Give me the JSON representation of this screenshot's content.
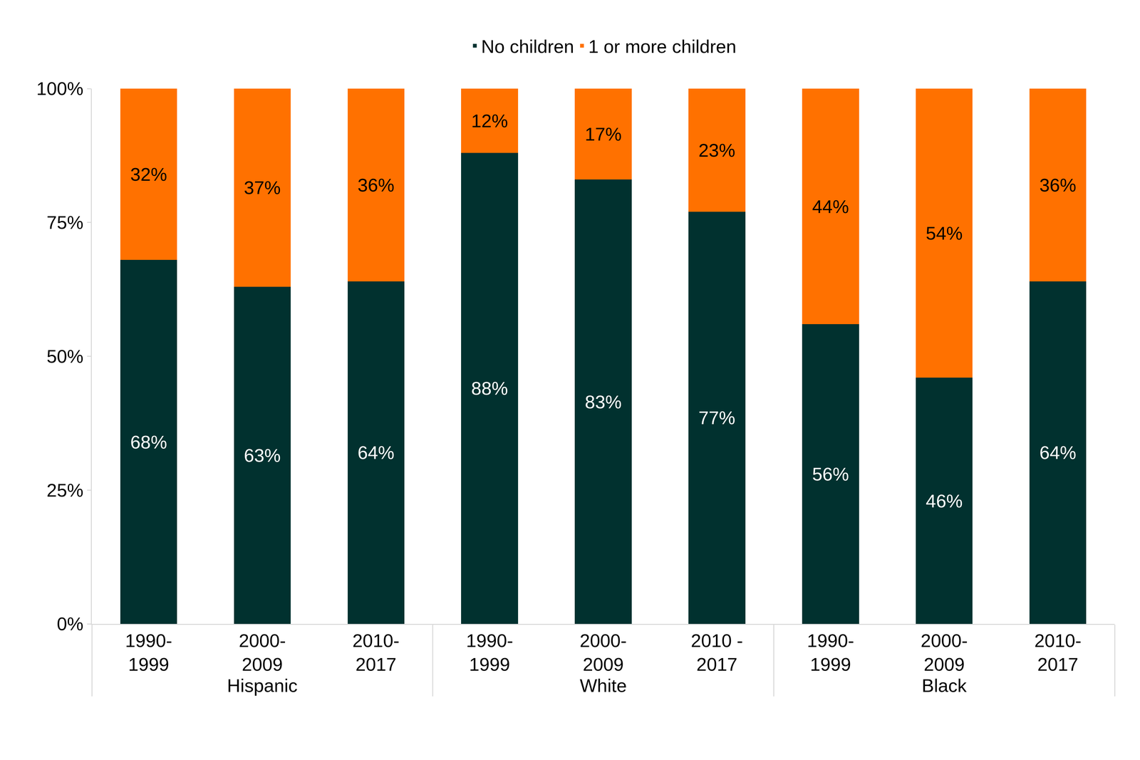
{
  "chart_data": {
    "type": "bar",
    "stacked": true,
    "data_labels": true,
    "legend": "top",
    "grid": false,
    "categories": [
      [
        "Hispanic",
        "1990-\n1999"
      ],
      [
        "Hispanic",
        "2000-\n2009"
      ],
      [
        "Hispanic",
        "2010-\n2017"
      ],
      [
        "White",
        "1990-\n1999"
      ],
      [
        "White",
        "2000-\n2009"
      ],
      [
        "White",
        "2010 -\n2017"
      ],
      [
        "Black",
        "1990-\n1999"
      ],
      [
        "Black",
        "2000-\n2009"
      ],
      [
        "Black",
        "2010-\n2017"
      ]
    ],
    "series": [
      {
        "name": "No children",
        "color": "#01312f",
        "values": [
          68,
          63,
          64,
          88,
          83,
          77,
          56,
          46,
          64
        ],
        "value_labels": [
          "68%",
          "63%",
          "64%",
          "88%",
          "83%",
          "77%",
          "56%",
          "46%",
          "64%"
        ]
      },
      {
        "name": "1 or more children",
        "color": "#ff7100",
        "values": [
          32,
          37,
          36,
          12,
          17,
          23,
          44,
          54,
          36
        ],
        "value_labels": [
          "32%",
          "37%",
          "36%",
          "12%",
          "17%",
          "23%",
          "44%",
          "54%",
          "36%"
        ]
      }
    ],
    "ylim": [
      0,
      100
    ],
    "yticks": [
      {
        "value": 0,
        "label": "0%"
      },
      {
        "value": 25,
        "label": "25%"
      },
      {
        "value": 50,
        "label": "50%"
      },
      {
        "value": 75,
        "label": "75%"
      },
      {
        "value": 100,
        "label": "100%"
      }
    ]
  }
}
